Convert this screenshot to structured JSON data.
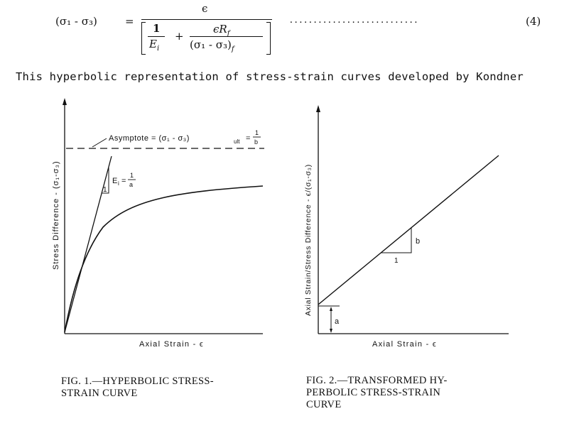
{
  "equation": {
    "lhs": "(σ₁  -  σ₃)",
    "equals": "=",
    "numerator": "ϵ",
    "term1_num": "1",
    "term1_den": "E",
    "term1_den_sub": "i",
    "plus": "+",
    "term2_num_eps": "ϵR",
    "term2_num_sub": "f",
    "term2_den": "(σ₁  -  σ₃)",
    "term2_den_sub": "f",
    "dots": "...........................",
    "number": "(4)"
  },
  "body_text": "This hyperbolic representation of stress-strain curves developed by Kondner",
  "figure1": {
    "ylabel": "Stress Difference - (σ₁-σ₃)",
    "xlabel": "Axial Strain - ϵ",
    "asymptote_label": "Asymptote = (σ₁ - σ₃)",
    "asymptote_sub": "ult",
    "asymptote_eq": "=",
    "asymptote_frac_num": "1",
    "asymptote_frac_den": "b",
    "slope_label": "E",
    "slope_sub": "i",
    "slope_eq": "=",
    "slope_frac_num": "1",
    "slope_frac_den": "a",
    "slope_run": "1",
    "caption": "FIG. 1.—HYPERBOLIC STRESS-\nSTRAIN CURVE"
  },
  "figure2": {
    "ylabel": "Axial Strain/Stress Difference - ϵ/(σ₁-σ₃)",
    "xlabel": "Axial Strain - ϵ",
    "rise_label": "b",
    "run_label": "1",
    "intercept_label": "a",
    "caption": "FIG. 2.—TRANSFORMED HY-\nPERBOLIC STRESS-STRAIN\nCURVE"
  }
}
